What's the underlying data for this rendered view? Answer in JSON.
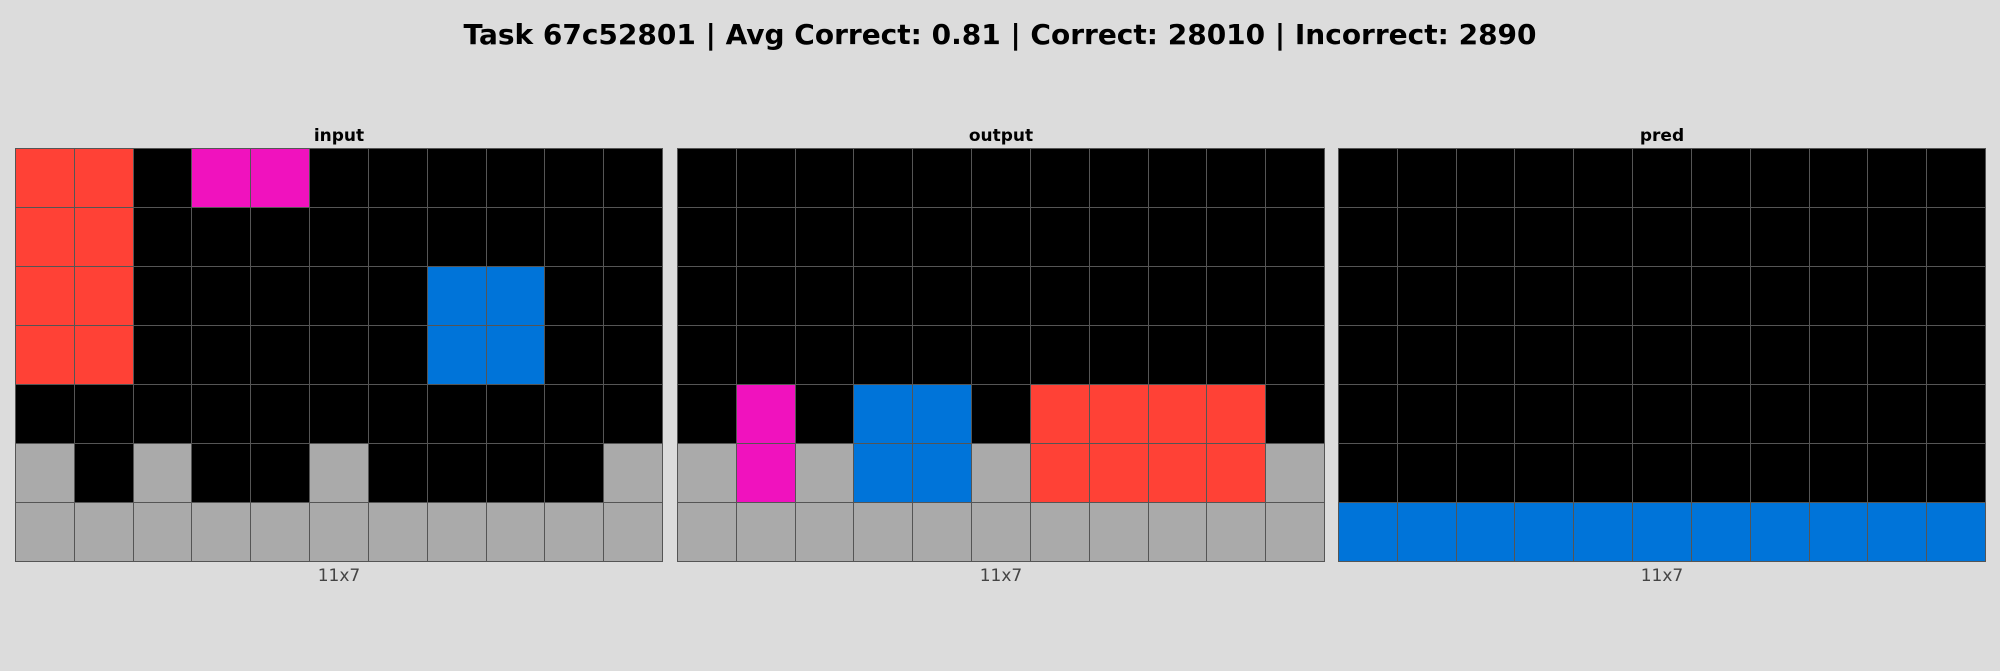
{
  "title": "Task 67c52801 | Avg Correct: 0.81 | Correct: 28010 | Incorrect: 2890",
  "palette": {
    "0": "#000000",
    "1": "#0074d9",
    "2": "#ff4136",
    "5": "#aaaaaa",
    "6": "#f012be"
  },
  "panels": [
    {
      "label": "input",
      "dims": "11x7",
      "grid": [
        [
          2,
          2,
          0,
          6,
          6,
          0,
          0,
          0,
          0,
          0,
          0
        ],
        [
          2,
          2,
          0,
          0,
          0,
          0,
          0,
          0,
          0,
          0,
          0
        ],
        [
          2,
          2,
          0,
          0,
          0,
          0,
          0,
          1,
          1,
          0,
          0
        ],
        [
          2,
          2,
          0,
          0,
          0,
          0,
          0,
          1,
          1,
          0,
          0
        ],
        [
          0,
          0,
          0,
          0,
          0,
          0,
          0,
          0,
          0,
          0,
          0
        ],
        [
          5,
          0,
          5,
          0,
          0,
          5,
          0,
          0,
          0,
          0,
          5
        ],
        [
          5,
          5,
          5,
          5,
          5,
          5,
          5,
          5,
          5,
          5,
          5
        ]
      ]
    },
    {
      "label": "output",
      "dims": "11x7",
      "grid": [
        [
          0,
          0,
          0,
          0,
          0,
          0,
          0,
          0,
          0,
          0,
          0
        ],
        [
          0,
          0,
          0,
          0,
          0,
          0,
          0,
          0,
          0,
          0,
          0
        ],
        [
          0,
          0,
          0,
          0,
          0,
          0,
          0,
          0,
          0,
          0,
          0
        ],
        [
          0,
          0,
          0,
          0,
          0,
          0,
          0,
          0,
          0,
          0,
          0
        ],
        [
          0,
          6,
          0,
          1,
          1,
          0,
          2,
          2,
          2,
          2,
          0
        ],
        [
          5,
          6,
          5,
          1,
          1,
          5,
          2,
          2,
          2,
          2,
          5
        ],
        [
          5,
          5,
          5,
          5,
          5,
          5,
          5,
          5,
          5,
          5,
          5
        ]
      ]
    },
    {
      "label": "pred",
      "dims": "11x7",
      "grid": [
        [
          0,
          0,
          0,
          0,
          0,
          0,
          0,
          0,
          0,
          0,
          0
        ],
        [
          0,
          0,
          0,
          0,
          0,
          0,
          0,
          0,
          0,
          0,
          0
        ],
        [
          0,
          0,
          0,
          0,
          0,
          0,
          0,
          0,
          0,
          0,
          0
        ],
        [
          0,
          0,
          0,
          0,
          0,
          0,
          0,
          0,
          0,
          0,
          0
        ],
        [
          0,
          0,
          0,
          0,
          0,
          0,
          0,
          0,
          0,
          0,
          0
        ],
        [
          0,
          0,
          0,
          0,
          0,
          0,
          0,
          0,
          0,
          0,
          0
        ],
        [
          1,
          1,
          1,
          1,
          1,
          1,
          1,
          1,
          1,
          1,
          1
        ]
      ]
    }
  ]
}
